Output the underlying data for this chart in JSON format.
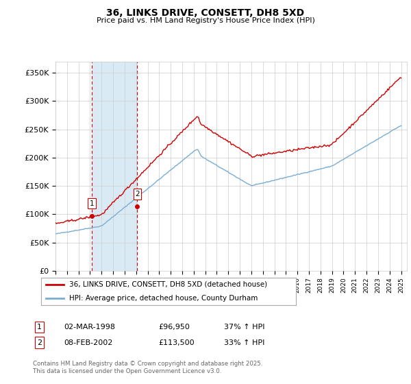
{
  "title": "36, LINKS DRIVE, CONSETT, DH8 5XD",
  "subtitle": "Price paid vs. HM Land Registry's House Price Index (HPI)",
  "legend_line1": "36, LINKS DRIVE, CONSETT, DH8 5XD (detached house)",
  "legend_line2": "HPI: Average price, detached house, County Durham",
  "sale1_date": "02-MAR-1998",
  "sale1_price": "£96,950",
  "sale1_hpi": "37% ↑ HPI",
  "sale2_date": "08-FEB-2002",
  "sale2_price": "£113,500",
  "sale2_hpi": "33% ↑ HPI",
  "footer": "Contains HM Land Registry data © Crown copyright and database right 2025.\nThis data is licensed under the Open Government Licence v3.0.",
  "red_color": "#cc0000",
  "blue_color": "#7aadd4",
  "vshade_color": "#daeaf5",
  "grid_color": "#cccccc",
  "ylim": [
    0,
    370000
  ],
  "ytick_vals": [
    0,
    50000,
    100000,
    150000,
    200000,
    250000,
    300000,
    350000
  ],
  "ytick_labels": [
    "£0",
    "£50K",
    "£100K",
    "£150K",
    "£200K",
    "£250K",
    "£300K",
    "£350K"
  ],
  "xmin": 1995,
  "xmax": 2025.5,
  "sale1_year": 1998.17,
  "sale1_price_val": 96950,
  "sale2_year": 2002.1,
  "sale2_price_val": 113500
}
